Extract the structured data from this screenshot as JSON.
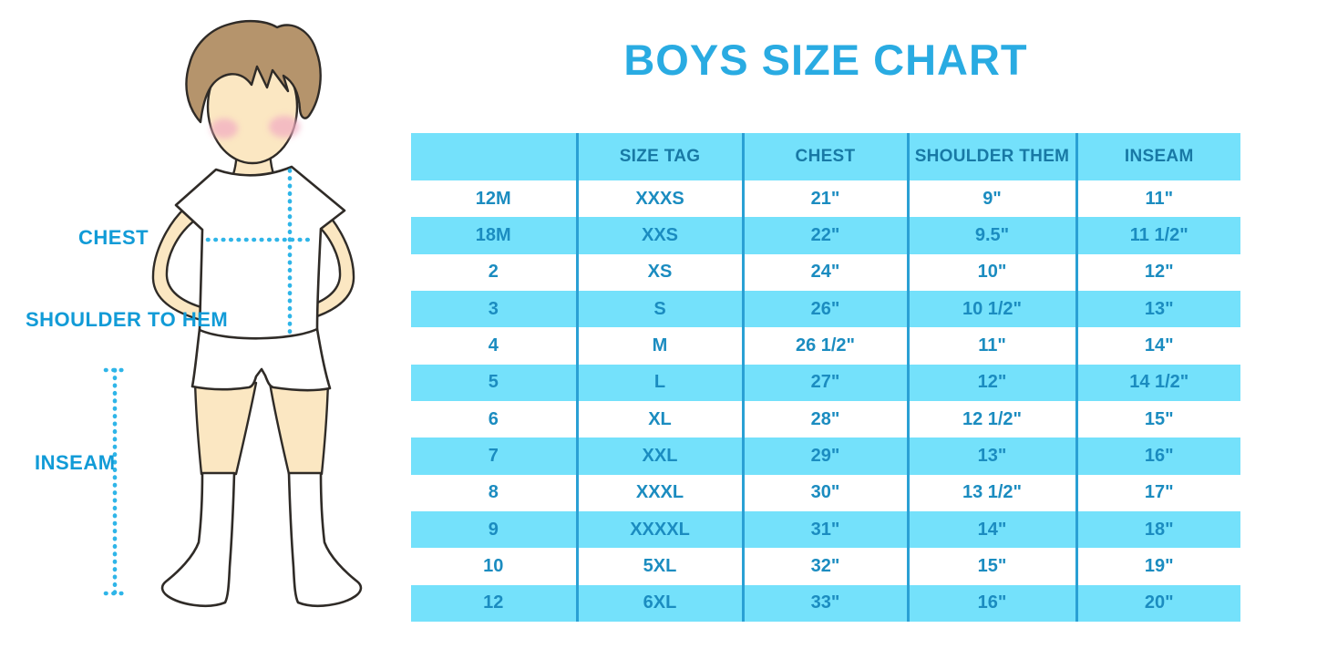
{
  "title": "BOYS SIZE CHART",
  "figure": {
    "description": "boy wearing white t-shirt, shorts and knee socks with measurement guides",
    "labels": {
      "chest": "CHEST",
      "shoulder_to_hem": "SHOULDER TO HEM",
      "inseam": "INSEAM"
    }
  },
  "chart_data": {
    "type": "table",
    "title": "BOYS SIZE CHART",
    "columns": [
      "",
      "SIZE TAG",
      "CHEST",
      "SHOULDER THEM",
      "INSEAM"
    ],
    "rows": [
      [
        "12M",
        "XXXS",
        "21\"",
        "9\"",
        "11\""
      ],
      [
        "18M",
        "XXS",
        "22\"",
        "9.5\"",
        "11 1/2\""
      ],
      [
        "2",
        "XS",
        "24\"",
        "10\"",
        "12\""
      ],
      [
        "3",
        "S",
        "26\"",
        "10 1/2\"",
        "13\""
      ],
      [
        "4",
        "M",
        "26 1/2\"",
        "11\"",
        "14\""
      ],
      [
        "5",
        "L",
        "27\"",
        "12\"",
        "14 1/2\""
      ],
      [
        "6",
        "XL",
        "28\"",
        "12 1/2\"",
        "15\""
      ],
      [
        "7",
        "XXL",
        "29\"",
        "13\"",
        "16\""
      ],
      [
        "8",
        "XXXL",
        "30\"",
        "13 1/2\"",
        "17\""
      ],
      [
        "9",
        "XXXXL",
        "31\"",
        "14\"",
        "18\""
      ],
      [
        "10",
        "5XL",
        "32\"",
        "15\"",
        "19\""
      ],
      [
        "12",
        "6XL",
        "33\"",
        "16\"",
        "20\""
      ]
    ],
    "layout": {
      "striped": true,
      "stripe_start_row": 2,
      "grid_lines": "vertical-only"
    }
  },
  "colors": {
    "title_blue": "#29abe2",
    "label_blue": "#119bd7",
    "dotted_blue": "#2fb5e8",
    "stripe_cyan": "#74e1fb",
    "grid_blue": "#2aa0d4",
    "header_text": "#1879a5",
    "cell_text": "#1b8cc0",
    "skin": "#fbe7c2",
    "hair": "#b5946c",
    "blush": "#f2aec3",
    "outline": "#2f2b27"
  }
}
